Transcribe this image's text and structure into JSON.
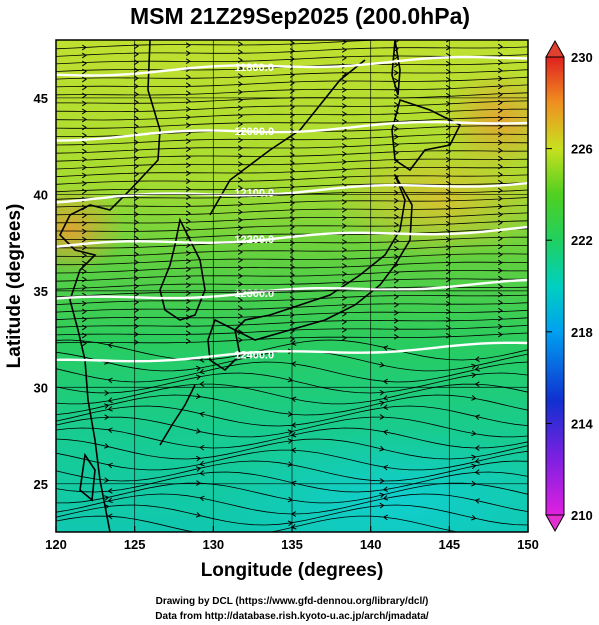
{
  "title": "MSM 21Z29Sep2025 (200.0hPa)",
  "xlabel": "Longitude (degrees)",
  "ylabel": "Latitude  (degrees)",
  "x_ticks": [
    "120",
    "125",
    "130",
    "135",
    "140",
    "145",
    "150"
  ],
  "y_ticks": [
    "25",
    "30",
    "35",
    "40",
    "45"
  ],
  "colorbar_ticks": [
    "230",
    "226",
    "222",
    "218",
    "214",
    "210"
  ],
  "contour_labels": [
    "11800.0",
    "12000.0",
    "12100.0",
    "12200.0",
    "12300.0",
    "12400.0"
  ],
  "credit": {
    "line1": "Drawing by DCL (https://www.gfd-dennou.org/library/dcl/)",
    "line2": "Data from http://database.rish.kyoto-u.ac.jp/arch/jmadata/"
  },
  "chart_data": {
    "type": "heatmap",
    "variable": "temperature (K) with geopotential height contours and wind streamlines",
    "x_range": [
      120,
      150
    ],
    "y_range": [
      22.5,
      48
    ],
    "colorbar_range": [
      210,
      230
    ],
    "colormap": [
      "#e026e0",
      "#1030d0",
      "#00c8f0",
      "#20d070",
      "#30d020",
      "#c8e020",
      "#f0a020",
      "#e03020"
    ],
    "contour_levels": [
      {
        "label": "11800.0",
        "lat": 46.2
      },
      {
        "label": "12000.0",
        "lat": 42.9
      },
      {
        "label": "12100.0",
        "lat": 39.7
      },
      {
        "label": "12200.0",
        "lat": 37.3
      },
      {
        "label": "12300.0",
        "lat": 34.5
      },
      {
        "label": "12400.0",
        "lat": 31.3
      }
    ]
  }
}
